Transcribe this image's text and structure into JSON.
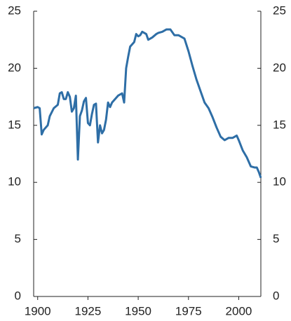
{
  "chart_data": {
    "type": "line",
    "x": [
      1898,
      1900,
      1901,
      1902,
      1903,
      1905,
      1906,
      1908,
      1910,
      1911,
      1912,
      1913,
      1914,
      1915,
      1916,
      1917,
      1918,
      1919,
      1920,
      1921,
      1922,
      1923,
      1924,
      1925,
      1926,
      1927,
      1928,
      1929,
      1930,
      1931,
      1932,
      1933,
      1934,
      1935,
      1936,
      1937,
      1938,
      1940,
      1942,
      1943,
      1944,
      1945,
      1946,
      1948,
      1949,
      1950,
      1951,
      1952,
      1953,
      1954,
      1955,
      1957,
      1959,
      1960,
      1962,
      1964,
      1966,
      1968,
      1970,
      1972,
      1973,
      1975,
      1977,
      1979,
      1981,
      1983,
      1985,
      1987,
      1989,
      1991,
      1993,
      1995,
      1997,
      1999,
      2000,
      2002,
      2004,
      2006,
      2008,
      2009,
      2010,
      2011
    ],
    "series": [
      {
        "color": "#2e6ea6",
        "values": [
          16.5,
          16.6,
          16.5,
          14.2,
          14.6,
          15.0,
          15.8,
          16.5,
          16.8,
          17.8,
          17.9,
          17.3,
          17.3,
          17.9,
          17.5,
          16.2,
          16.5,
          17.6,
          12.0,
          15.8,
          16.3,
          17.1,
          17.4,
          15.2,
          15.0,
          16.0,
          16.8,
          16.9,
          13.5,
          15.0,
          14.3,
          14.6,
          15.5,
          17.0,
          16.6,
          17.0,
          17.2,
          17.6,
          17.8,
          17.0,
          20.0,
          21.0,
          21.9,
          22.3,
          23.0,
          22.8,
          22.9,
          23.2,
          23.1,
          23.0,
          22.5,
          22.7,
          23.0,
          23.1,
          23.2,
          23.4,
          23.4,
          22.9,
          22.9,
          22.7,
          22.6,
          21.5,
          20.2,
          19.0,
          18.0,
          17.0,
          16.5,
          15.7,
          14.8,
          14.0,
          13.7,
          13.9,
          13.9,
          14.1,
          13.7,
          12.8,
          12.2,
          11.4,
          11.3,
          11.3,
          10.9,
          10.4
        ]
      }
    ],
    "xlim": [
      1898,
      2011
    ],
    "xticks": [
      1900,
      1925,
      1950,
      1975,
      2000
    ],
    "ylim": [
      0,
      25
    ],
    "yticks": [
      0,
      5,
      10,
      15,
      20,
      25
    ],
    "y2lim": [
      0,
      25
    ],
    "y2ticks": [
      0,
      5,
      10,
      15,
      20,
      25
    ],
    "grid": false
  }
}
